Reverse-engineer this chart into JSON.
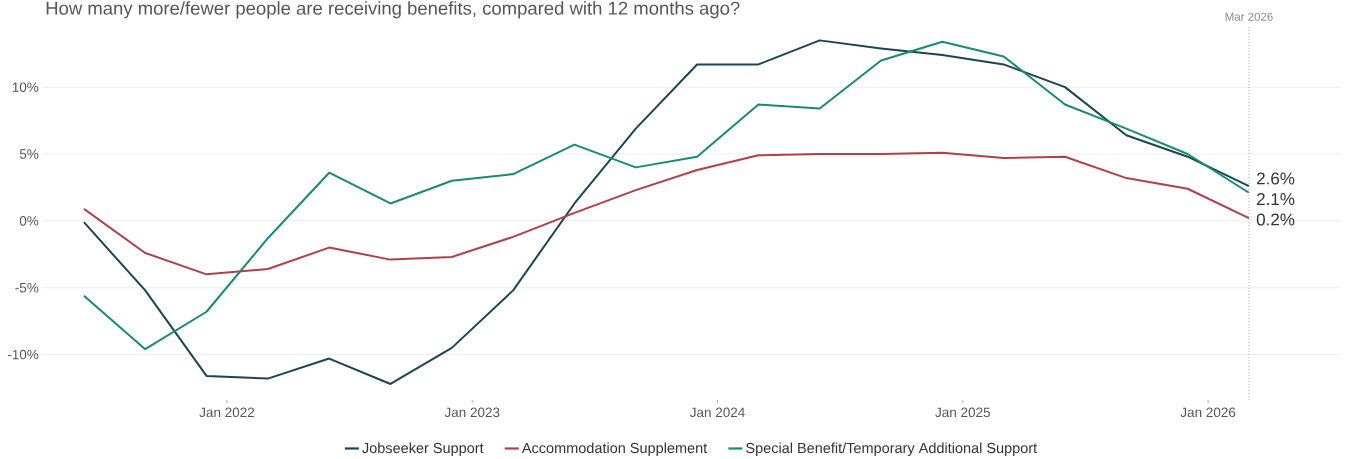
{
  "chart_data": {
    "type": "line",
    "title": "How many more/fewer people are receiving benefits, compared with 12 months ago?",
    "x": [
      "2021-06",
      "2021-09",
      "2021-12",
      "2022-03",
      "2022-06",
      "2022-09",
      "2022-12",
      "2023-03",
      "2023-06",
      "2023-09",
      "2023-12",
      "2024-03",
      "2024-06",
      "2024-09",
      "2024-12",
      "2025-03",
      "2025-06",
      "2025-09",
      "2025-12",
      "2026-03"
    ],
    "series": [
      {
        "name": "Jobseeker Support",
        "color": "#1b4557",
        "values": [
          -0.1,
          -5.2,
          -11.6,
          -11.8,
          -10.3,
          -12.2,
          -9.5,
          -5.2,
          1.3,
          6.9,
          11.7,
          11.7,
          13.5,
          12.9,
          12.4,
          11.7,
          10.0,
          6.4,
          4.8,
          2.6
        ],
        "value_labels": [
          null,
          null,
          null,
          null,
          null,
          null,
          null,
          null,
          null,
          null,
          null,
          null,
          null,
          null,
          null,
          null,
          null,
          null,
          null,
          "2.6%"
        ]
      },
      {
        "name": "Accommodation Supplement",
        "color": "#b23f4a",
        "values": [
          0.9,
          -2.4,
          -4.0,
          -3.6,
          -2.0,
          -2.9,
          -2.7,
          -1.2,
          0.6,
          2.3,
          3.8,
          4.9,
          5.0,
          5.0,
          5.1,
          4.7,
          4.8,
          3.2,
          2.4,
          0.2
        ],
        "value_labels": [
          null,
          null,
          null,
          null,
          null,
          null,
          null,
          null,
          null,
          null,
          null,
          null,
          null,
          null,
          null,
          null,
          null,
          null,
          null,
          "0.2%"
        ]
      },
      {
        "name": "Special Benefit/Temporary Additional Support",
        "color": "#1a8a72",
        "values": [
          -5.6,
          -9.6,
          -6.8,
          -1.3,
          3.6,
          1.3,
          3.0,
          3.5,
          5.7,
          4.0,
          4.8,
          8.7,
          8.4,
          12.0,
          13.4,
          12.3,
          8.7,
          6.9,
          5.0,
          2.1
        ],
        "value_labels": [
          null,
          null,
          null,
          null,
          null,
          null,
          null,
          null,
          null,
          null,
          null,
          null,
          null,
          null,
          null,
          null,
          null,
          null,
          null,
          "2.1%"
        ]
      }
    ],
    "xlim": [
      "2021-04-01",
      "2026-07-15"
    ],
    "xticks": [
      {
        "value": "2022-01",
        "label": "Jan 2022"
      },
      {
        "value": "2023-01",
        "label": "Jan 2023"
      },
      {
        "value": "2024-01",
        "label": "Jan 2024"
      },
      {
        "value": "2025-01",
        "label": "Jan 2025"
      },
      {
        "value": "2026-01",
        "label": "Jan 2026"
      }
    ],
    "ylim": [
      -13.4,
      14.5
    ],
    "yticks": [
      {
        "value": -10,
        "label": "-10%"
      },
      {
        "value": -5,
        "label": "-5%"
      },
      {
        "value": 0,
        "label": "0%"
      },
      {
        "value": 5,
        "label": "5%"
      },
      {
        "value": 10,
        "label": "10%"
      }
    ],
    "grid": "y",
    "legend": "bottom",
    "marker": "none",
    "line_style": "solid",
    "ref_lines": [
      {
        "axis": "x",
        "value": "2026-03",
        "label": "Mar 2026",
        "color": "#aaaaaa",
        "line_style": "dotted"
      }
    ]
  }
}
